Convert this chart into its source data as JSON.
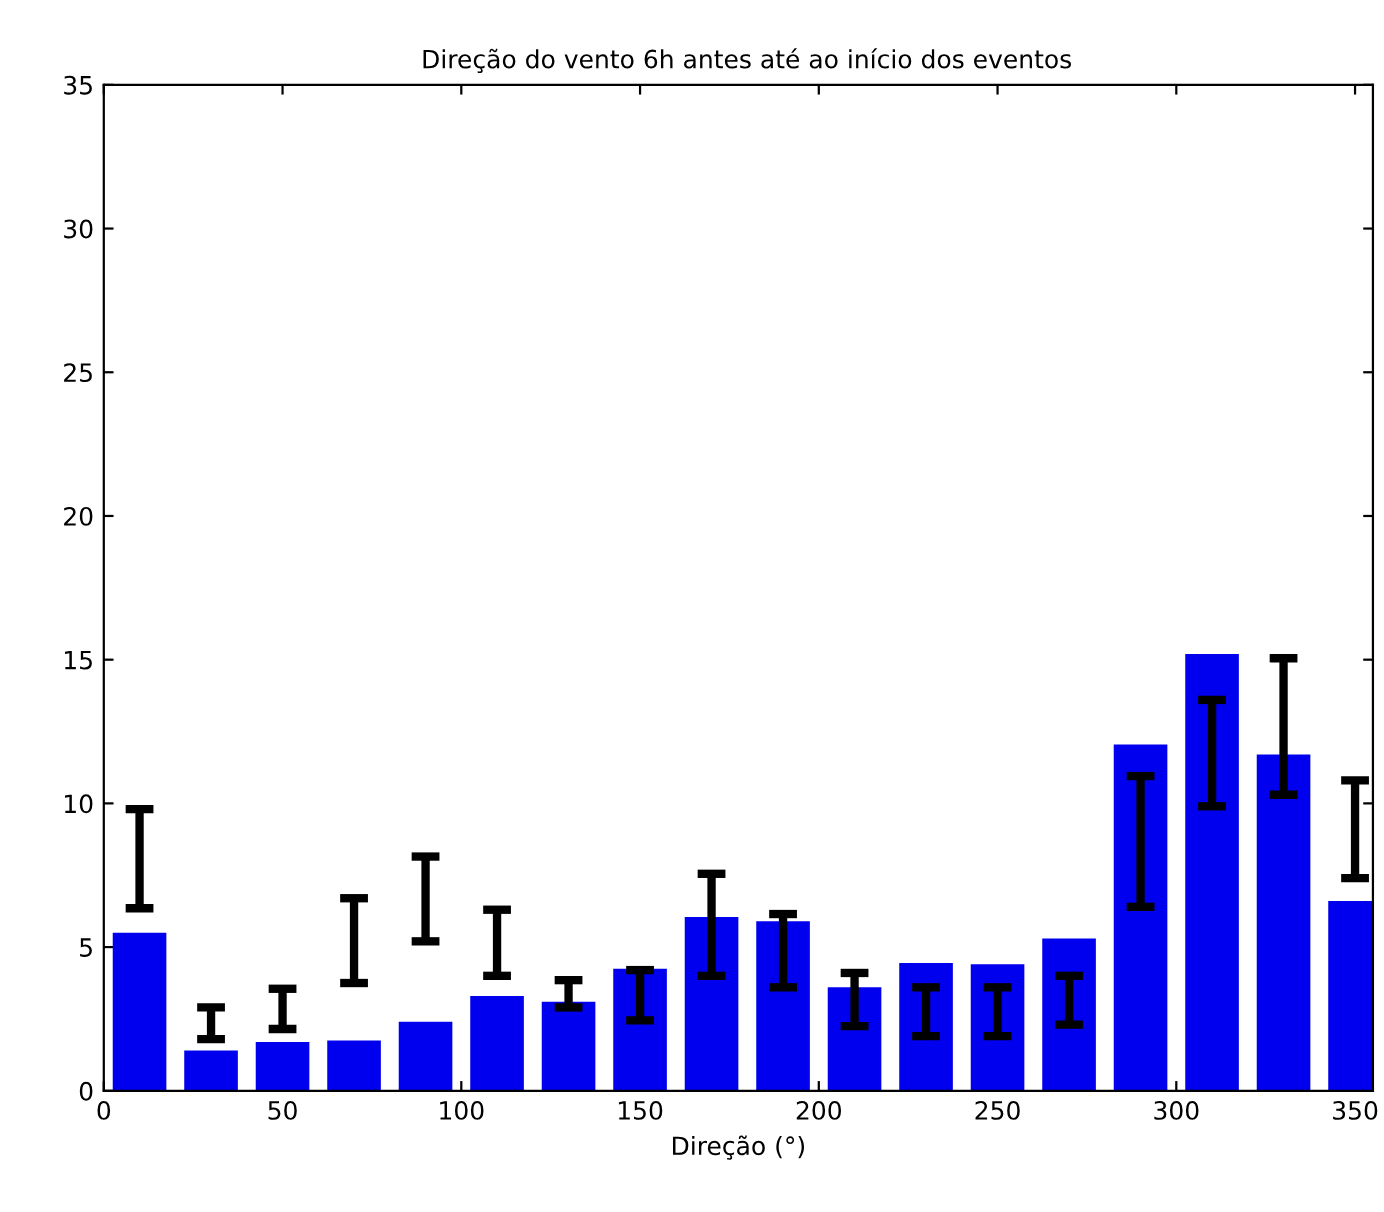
{
  "chart_data": {
    "type": "bar",
    "title": "Direção do vento 6h antes até ao início dos eventos",
    "xlabel": "Direção (°)",
    "x": [
      10,
      30,
      50,
      70,
      90,
      110,
      130,
      150,
      170,
      190,
      210,
      230,
      250,
      270,
      290,
      310,
      330,
      350
    ],
    "values": [
      5.5,
      1.4,
      1.7,
      1.75,
      2.4,
      3.3,
      3.1,
      4.25,
      6.05,
      5.9,
      3.6,
      4.45,
      4.4,
      5.3,
      12.05,
      15.2,
      11.7,
      6.6
    ],
    "errors": [
      [
        6.35,
        9.8
      ],
      [
        1.8,
        2.9
      ],
      [
        2.15,
        3.55
      ],
      [
        3.75,
        6.7
      ],
      [
        5.2,
        8.15
      ],
      [
        4.0,
        6.3
      ],
      [
        2.9,
        3.85
      ],
      [
        2.45,
        4.2
      ],
      [
        4.0,
        7.55
      ],
      [
        3.6,
        6.15
      ],
      [
        2.25,
        4.1
      ],
      [
        1.9,
        3.6
      ],
      [
        1.9,
        3.6
      ],
      [
        2.3,
        4.0
      ],
      [
        6.4,
        10.95
      ],
      [
        9.9,
        13.6
      ],
      [
        10.3,
        15.05
      ],
      [
        7.4,
        10.8
      ]
    ],
    "color": "#0000ee",
    "xlim": [
      0,
      355
    ],
    "xticks": [
      0,
      50,
      100,
      150,
      200,
      250,
      300,
      350
    ],
    "ylim": [
      0,
      35
    ],
    "yticks": [
      0,
      5,
      10,
      15,
      20,
      25,
      30,
      35
    ],
    "grid": false
  }
}
